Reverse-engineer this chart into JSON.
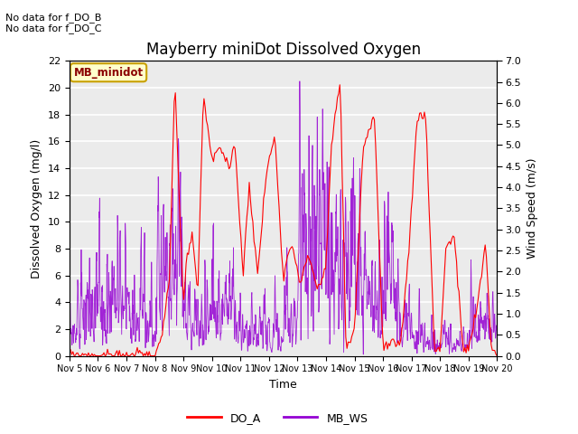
{
  "title": "Mayberry miniDot Dissolved Oxygen",
  "xlabel": "Time",
  "ylabel_left": "Dissolved Oxygen (mg/l)",
  "ylabel_right": "Wind Speed (m/s)",
  "no_data_text_1": "No data for f_DO_B",
  "no_data_text_2": "No data for f_DO_C",
  "legend_box_label": "MB_minidot",
  "legend_entries": [
    "DO_A",
    "MB_WS"
  ],
  "do_color": "#ff0000",
  "ws_color": "#9400d3",
  "ylim_left": [
    0,
    22
  ],
  "ylim_right": [
    0.0,
    7.0
  ],
  "yticks_left": [
    0,
    2,
    4,
    6,
    8,
    10,
    12,
    14,
    16,
    18,
    20,
    22
  ],
  "yticks_right": [
    0.0,
    0.5,
    1.0,
    1.5,
    2.0,
    2.5,
    3.0,
    3.5,
    4.0,
    4.5,
    5.0,
    5.5,
    6.0,
    6.5,
    7.0
  ],
  "plot_bg_color": "#ebebeb",
  "grid_color": "#ffffff",
  "title_fontsize": 12,
  "axis_fontsize": 9,
  "tick_fontsize": 8,
  "fig_width": 6.4,
  "fig_height": 4.8,
  "fig_dpi": 100
}
